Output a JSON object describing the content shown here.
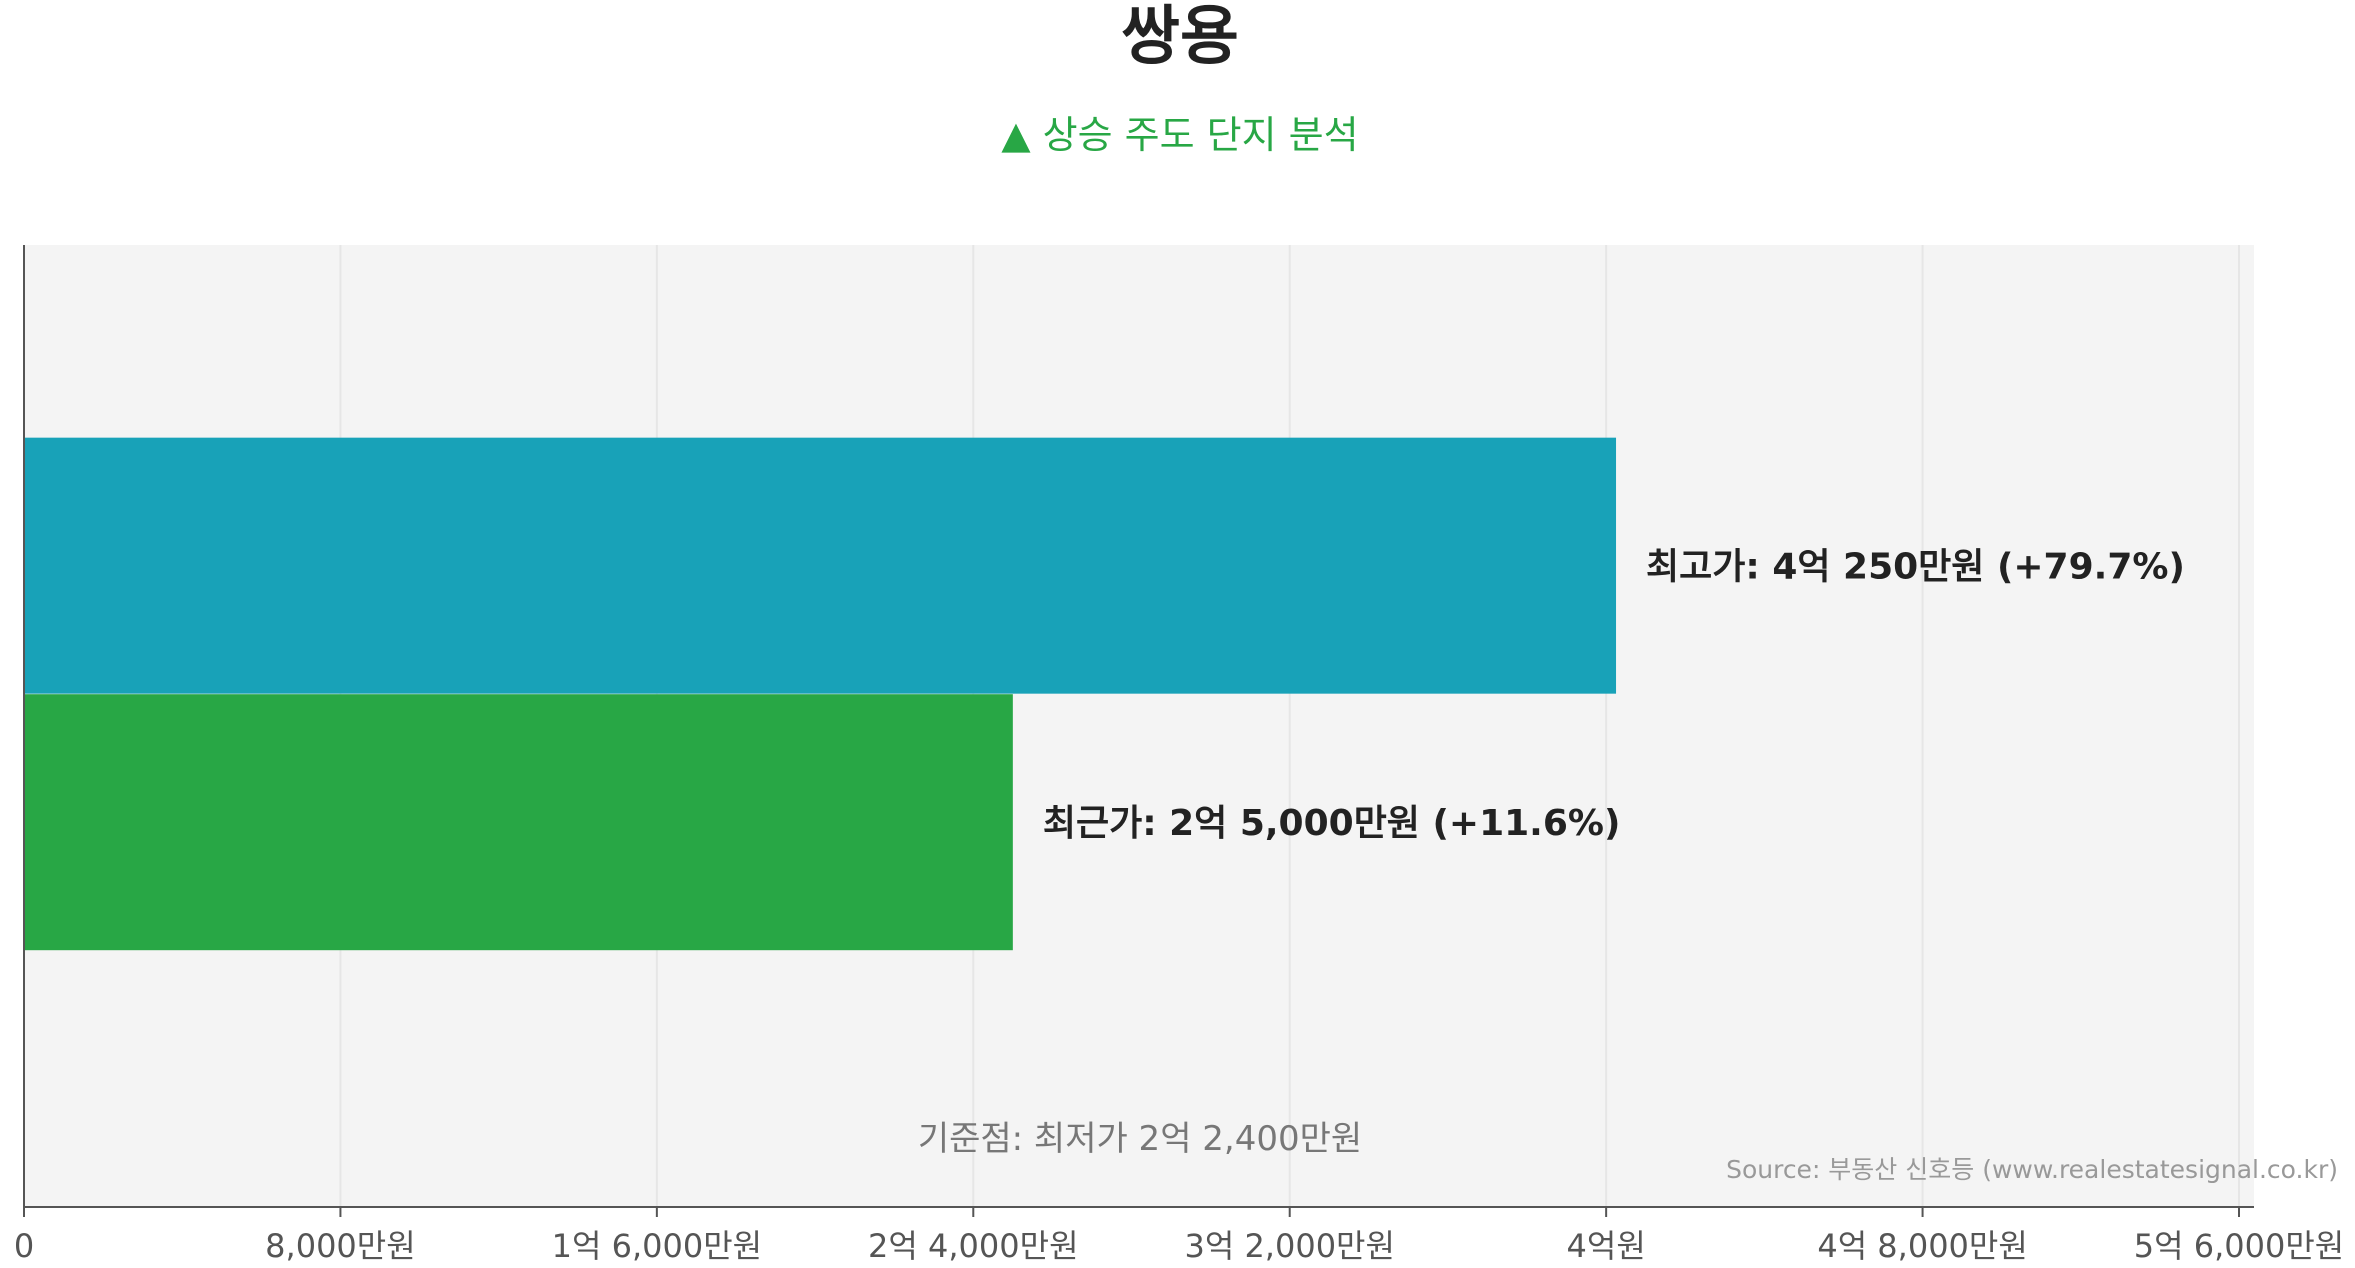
{
  "chart_data": {
    "type": "bar",
    "orientation": "horizontal",
    "title": "쌍용",
    "subtitle": "▲ 상승 주도 단지 분석",
    "categories": [
      "최고가",
      "최근가"
    ],
    "values": [
      40250,
      25000
    ],
    "value_labels": [
      "최고가: 4억 250만원 (+79.7%)",
      "최근가: 2억 5,000만원 (+11.6%)"
    ],
    "bar_colors": [
      "#18a2b8",
      "#28a745"
    ],
    "xlim": [
      0,
      56000
    ],
    "x_ticks": [
      0,
      8000,
      16000,
      24000,
      32000,
      40000,
      48000,
      56000
    ],
    "x_tick_labels": [
      "0",
      "8,000만원",
      "1억 6,000만원",
      "2억 4,000만원",
      "3억 2,000만원",
      "4억원",
      "4억 8,000만원",
      "5억 6,000만원"
    ],
    "baseline_label": "기준점: 최저가 2억 2,400만원",
    "source": "Source: 부동산 신호등 (www.realestatesignal.co.kr)",
    "grid": true,
    "colors": {
      "title": "#222222",
      "subtitle": "#28a745",
      "plot_bg": "#f4f4f4",
      "grid": "#e6e6e6",
      "axis": "#555555",
      "tick_label": "#555555",
      "muted": "#777777",
      "source": "#999999"
    }
  }
}
